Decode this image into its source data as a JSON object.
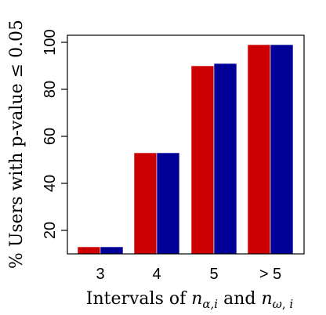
{
  "chart_data": {
    "type": "bar",
    "title": "",
    "categories": [
      "3",
      "4",
      "5",
      "> 5"
    ],
    "series": [
      {
        "values": [
          13,
          53,
          90,
          99
        ],
        "color": "#cc0000"
      },
      {
        "values": [
          13,
          53,
          91,
          99
        ],
        "color": "#000099"
      }
    ],
    "ylim": [
      10,
      103
    ],
    "yticks": [
      20,
      40,
      60,
      80,
      100
    ],
    "ytick_labels": [
      "20",
      "40",
      "60",
      "80",
      "100"
    ],
    "ylabel_parts": [
      "% Users with p-value ",
      "≤",
      " 0.05"
    ],
    "xlabel_parts": [
      "Intervals of ",
      "n",
      "α,i",
      " and ",
      "n",
      "ω",
      ", ",
      "i"
    ],
    "grid": false,
    "legend": false
  }
}
